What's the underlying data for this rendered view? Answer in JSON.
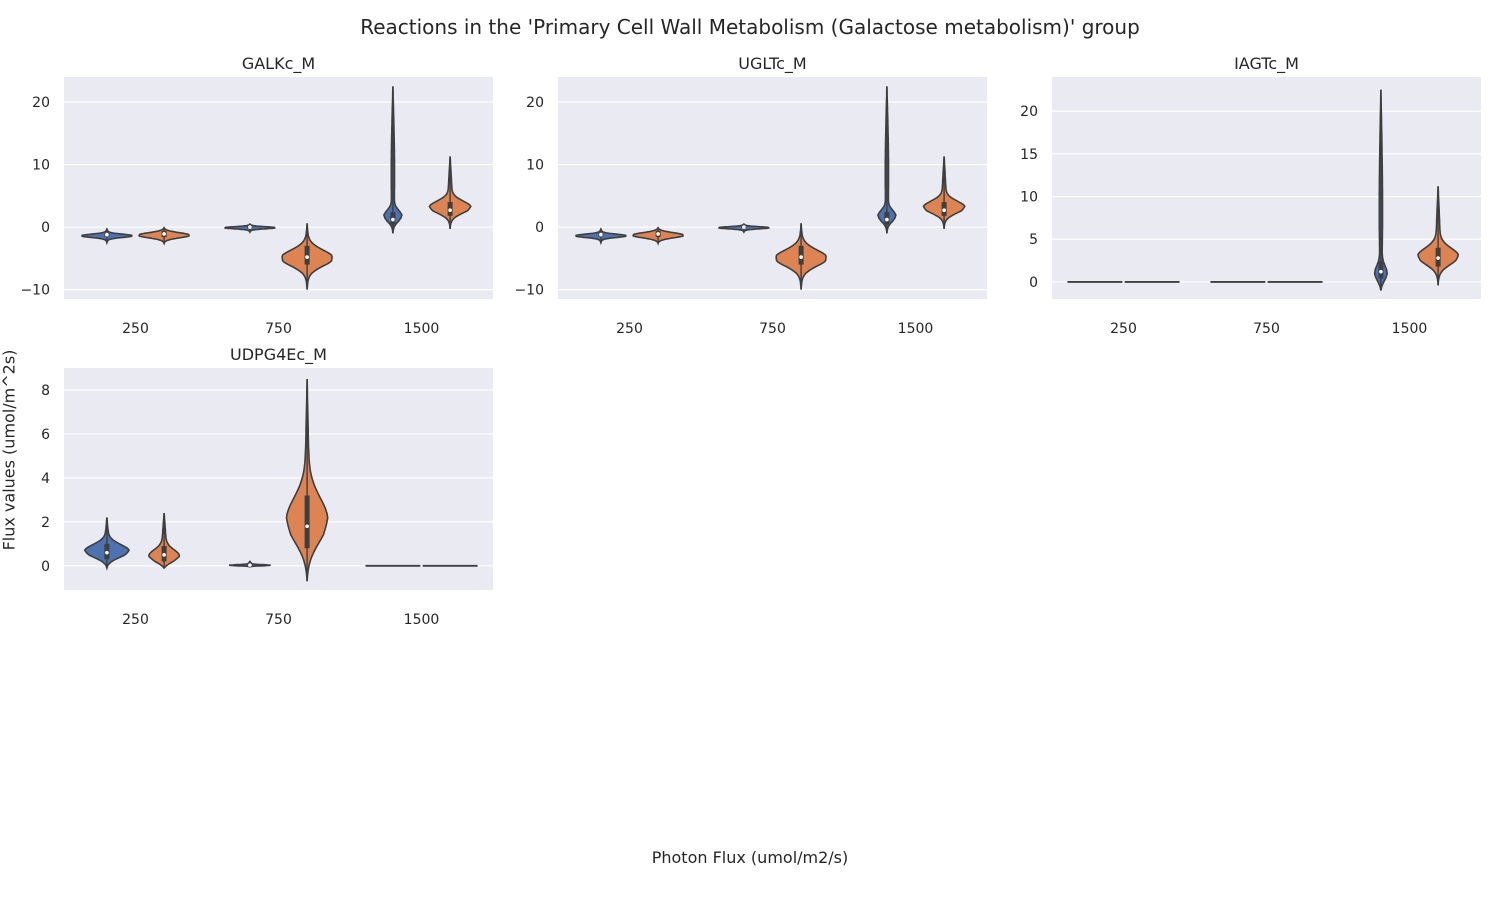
{
  "figure": {
    "title": "Reactions in the 'Primary Cell Wall Metabolism (Galactose metabolism)' group",
    "xlabel": "Photon Flux (umol/m2/s)",
    "ylabel": "Flux values (umol/m^2s)",
    "colors": {
      "background": "#eaeaf2",
      "grid": "#ffffff",
      "hue_1": "#4c72b0",
      "hue_2": "#dd8452",
      "edge": "#3f3f3f"
    }
  },
  "chart_data": [
    {
      "type": "violin",
      "title": "GALKc_M",
      "categories": [
        "250",
        "750",
        "1500"
      ],
      "ylim": [
        -11.5,
        24
      ],
      "yticks": [
        -10,
        0,
        10,
        20
      ],
      "ytick_labels": [
        "−10",
        "0",
        "10",
        "20"
      ],
      "violins": [
        {
          "cat": 0,
          "hue": 0,
          "min": -2.5,
          "max": -0.3,
          "q1": -1.5,
          "median": -1.2,
          "q3": -0.9,
          "mode": -1.4
        },
        {
          "cat": 0,
          "hue": 1,
          "min": -2.6,
          "max": -0.1,
          "q1": -1.6,
          "median": -1.1,
          "q3": -0.6,
          "mode": -1.3
        },
        {
          "cat": 1,
          "hue": 0,
          "min": -0.8,
          "max": 0.5,
          "q1": -0.2,
          "median": 0.0,
          "q3": 0.2,
          "mode": -0.1
        },
        {
          "cat": 1,
          "hue": 1,
          "min": -10,
          "max": 0.6,
          "q1": -6,
          "median": -4.8,
          "q3": -3,
          "mode": -5
        },
        {
          "cat": 2,
          "hue": 0,
          "min": -1,
          "max": 22.5,
          "q1": 0.4,
          "median": 1.2,
          "q3": 2.4,
          "mode": 1.5
        },
        {
          "cat": 2,
          "hue": 1,
          "min": -0.3,
          "max": 11.3,
          "q1": 1.8,
          "median": 2.7,
          "q3": 4,
          "mode": 3
        }
      ]
    },
    {
      "type": "violin",
      "title": "UGLTc_M",
      "categories": [
        "250",
        "750",
        "1500"
      ],
      "ylim": [
        -11.5,
        24
      ],
      "yticks": [
        -10,
        0,
        10,
        20
      ],
      "ytick_labels": [
        "−10",
        "0",
        "10",
        "20"
      ],
      "violins": [
        {
          "cat": 0,
          "hue": 0,
          "min": -2.5,
          "max": -0.3,
          "q1": -1.5,
          "median": -1.2,
          "q3": -0.9,
          "mode": -1.4
        },
        {
          "cat": 0,
          "hue": 1,
          "min": -2.6,
          "max": -0.1,
          "q1": -1.6,
          "median": -1.1,
          "q3": -0.6,
          "mode": -1.3
        },
        {
          "cat": 1,
          "hue": 0,
          "min": -0.8,
          "max": 0.5,
          "q1": -0.2,
          "median": 0.0,
          "q3": 0.2,
          "mode": -0.1
        },
        {
          "cat": 1,
          "hue": 1,
          "min": -10,
          "max": 0.6,
          "q1": -6,
          "median": -4.8,
          "q3": -3,
          "mode": -5
        },
        {
          "cat": 2,
          "hue": 0,
          "min": -1,
          "max": 22.5,
          "q1": 0.4,
          "median": 1.2,
          "q3": 2.4,
          "mode": 1.5
        },
        {
          "cat": 2,
          "hue": 1,
          "min": -0.3,
          "max": 11.3,
          "q1": 1.8,
          "median": 2.7,
          "q3": 4,
          "mode": 3
        }
      ]
    },
    {
      "type": "violin",
      "title": "IAGTc_M",
      "categories": [
        "250",
        "750",
        "1500"
      ],
      "ylim": [
        -2,
        24
      ],
      "yticks": [
        0,
        5,
        10,
        15,
        20
      ],
      "ytick_labels": [
        "0",
        "5",
        "10",
        "15",
        "20"
      ],
      "violins": [
        {
          "cat": 0,
          "hue": 0,
          "min": 0,
          "max": 0,
          "q1": 0,
          "median": 0,
          "q3": 0,
          "mode": 0
        },
        {
          "cat": 0,
          "hue": 1,
          "min": 0,
          "max": 0,
          "q1": 0,
          "median": 0,
          "q3": 0,
          "mode": 0
        },
        {
          "cat": 1,
          "hue": 0,
          "min": 0,
          "max": 0,
          "q1": 0,
          "median": 0,
          "q3": 0,
          "mode": 0
        },
        {
          "cat": 1,
          "hue": 1,
          "min": 0,
          "max": 0,
          "q1": 0,
          "median": 0,
          "q3": 0,
          "mode": 0
        },
        {
          "cat": 2,
          "hue": 0,
          "min": -1,
          "max": 22.5,
          "q1": 0.4,
          "median": 1.2,
          "q3": 2.4,
          "mode": 0.6
        },
        {
          "cat": 2,
          "hue": 1,
          "min": -0.4,
          "max": 11.2,
          "q1": 1.8,
          "median": 2.8,
          "q3": 4,
          "mode": 2.8
        }
      ]
    },
    {
      "type": "violin",
      "title": "UDPG4Ec_M",
      "categories": [
        "250",
        "750",
        "1500"
      ],
      "ylim": [
        -1.1,
        9
      ],
      "yticks": [
        0,
        2,
        4,
        6,
        8
      ],
      "ytick_labels": [
        "0",
        "2",
        "4",
        "6",
        "8"
      ],
      "violins": [
        {
          "cat": 0,
          "hue": 0,
          "min": -0.1,
          "max": 2.2,
          "q1": 0.3,
          "median": 0.6,
          "q3": 1.0,
          "mode": 0.6
        },
        {
          "cat": 0,
          "hue": 1,
          "min": -0.1,
          "max": 2.4,
          "q1": 0.2,
          "median": 0.5,
          "q3": 0.9,
          "mode": 0.3
        },
        {
          "cat": 1,
          "hue": 0,
          "min": -0.05,
          "max": 0.2,
          "q1": 0,
          "median": 0.03,
          "q3": 0.06,
          "mode": 0.02
        },
        {
          "cat": 1,
          "hue": 1,
          "min": -0.7,
          "max": 8.5,
          "q1": 0.8,
          "median": 1.8,
          "q3": 3.2,
          "mode": 1.8
        },
        {
          "cat": 2,
          "hue": 0,
          "min": 0,
          "max": 0,
          "q1": 0,
          "median": 0,
          "q3": 0,
          "mode": 0
        },
        {
          "cat": 2,
          "hue": 1,
          "min": 0,
          "max": 0,
          "q1": 0,
          "median": 0,
          "q3": 0,
          "mode": 0
        }
      ]
    }
  ]
}
